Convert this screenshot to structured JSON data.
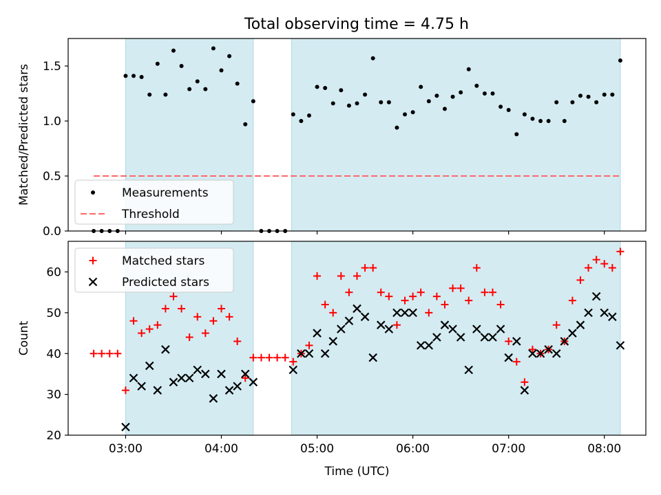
{
  "figure": {
    "title": "Total observing time = 4.75 h"
  },
  "colors": {
    "shade": "#add8e6",
    "measurement": "#000000",
    "threshold": "#ff6666",
    "matched": "#ff0000",
    "predicted": "#000000"
  },
  "chart_data": [
    {
      "type": "scatter",
      "ylabel": "Matched/Predicted stars",
      "xlabel": "",
      "xlim": [
        "02:24",
        "08:26"
      ],
      "ylim": [
        0,
        1.75
      ],
      "yticks": [
        0.0,
        0.5,
        1.0,
        1.5
      ],
      "ytick_labels": [
        "0.0",
        "0.5",
        "1.0",
        "1.5"
      ],
      "grid": false,
      "legend_position": "lower-left",
      "shaded_intervals": [
        [
          "03:00",
          "04:20"
        ],
        [
          "04:44",
          "08:10"
        ]
      ],
      "threshold": {
        "name": "Threshold",
        "value": 0.5,
        "x_range": [
          "02:40",
          "08:10"
        ],
        "style": "dashed"
      },
      "series": [
        {
          "name": "Measurements",
          "marker": "dot",
          "points": [
            [
              "02:40",
              0.0
            ],
            [
              "02:45",
              0.0
            ],
            [
              "02:50",
              0.0
            ],
            [
              "02:55",
              0.0
            ],
            [
              "03:00",
              1.41
            ],
            [
              "03:05",
              1.41
            ],
            [
              "03:10",
              1.4
            ],
            [
              "03:15",
              1.24
            ],
            [
              "03:20",
              1.52
            ],
            [
              "03:25",
              1.24
            ],
            [
              "03:30",
              1.64
            ],
            [
              "03:35",
              1.5
            ],
            [
              "03:40",
              1.29
            ],
            [
              "03:45",
              1.36
            ],
            [
              "03:50",
              1.29
            ],
            [
              "03:55",
              1.66
            ],
            [
              "04:00",
              1.46
            ],
            [
              "04:05",
              1.59
            ],
            [
              "04:10",
              1.34
            ],
            [
              "04:15",
              0.97
            ],
            [
              "04:20",
              1.18
            ],
            [
              "04:25",
              0.0
            ],
            [
              "04:30",
              0.0
            ],
            [
              "04:35",
              0.0
            ],
            [
              "04:40",
              0.0
            ],
            [
              "04:45",
              1.06
            ],
            [
              "04:50",
              1.0
            ],
            [
              "04:55",
              1.05
            ],
            [
              "05:00",
              1.31
            ],
            [
              "05:05",
              1.3
            ],
            [
              "05:10",
              1.16
            ],
            [
              "05:15",
              1.28
            ],
            [
              "05:20",
              1.14
            ],
            [
              "05:25",
              1.16
            ],
            [
              "05:30",
              1.24
            ],
            [
              "05:35",
              1.57
            ],
            [
              "05:40",
              1.17
            ],
            [
              "05:45",
              1.17
            ],
            [
              "05:50",
              0.94
            ],
            [
              "05:55",
              1.06
            ],
            [
              "06:00",
              1.08
            ],
            [
              "06:05",
              1.31
            ],
            [
              "06:10",
              1.18
            ],
            [
              "06:15",
              1.23
            ],
            [
              "06:20",
              1.11
            ],
            [
              "06:25",
              1.22
            ],
            [
              "06:30",
              1.26
            ],
            [
              "06:35",
              1.47
            ],
            [
              "06:40",
              1.32
            ],
            [
              "06:45",
              1.25
            ],
            [
              "06:50",
              1.25
            ],
            [
              "06:55",
              1.13
            ],
            [
              "07:00",
              1.1
            ],
            [
              "07:05",
              0.88
            ],
            [
              "07:10",
              1.06
            ],
            [
              "07:15",
              1.02
            ],
            [
              "07:20",
              1.0
            ],
            [
              "07:25",
              1.0
            ],
            [
              "07:30",
              1.17
            ],
            [
              "07:35",
              1.0
            ],
            [
              "07:40",
              1.17
            ],
            [
              "07:45",
              1.23
            ],
            [
              "07:50",
              1.22
            ],
            [
              "07:55",
              1.17
            ],
            [
              "08:00",
              1.24
            ],
            [
              "08:05",
              1.24
            ],
            [
              "08:10",
              1.55
            ]
          ]
        }
      ]
    },
    {
      "type": "scatter",
      "ylabel": "Count",
      "xlabel": "Time (UTC)",
      "xlim": [
        "02:24",
        "08:26"
      ],
      "ylim": [
        20,
        67.5
      ],
      "yticks": [
        20,
        30,
        40,
        50,
        60
      ],
      "ytick_labels": [
        "20",
        "30",
        "40",
        "50",
        "60"
      ],
      "xticks": [
        "03:00",
        "04:00",
        "05:00",
        "06:00",
        "07:00",
        "08:00"
      ],
      "xtick_labels": [
        "03:00",
        "04:00",
        "05:00",
        "06:00",
        "07:00",
        "08:00"
      ],
      "grid": false,
      "legend_position": "upper-left",
      "shaded_intervals": [
        [
          "03:00",
          "04:20"
        ],
        [
          "04:44",
          "08:10"
        ]
      ],
      "series": [
        {
          "name": "Matched stars",
          "marker": "plus",
          "points": [
            [
              "02:40",
              40
            ],
            [
              "02:45",
              40
            ],
            [
              "02:50",
              40
            ],
            [
              "02:55",
              40
            ],
            [
              "03:00",
              31
            ],
            [
              "03:05",
              48
            ],
            [
              "03:10",
              45
            ],
            [
              "03:15",
              46
            ],
            [
              "03:20",
              47
            ],
            [
              "03:25",
              51
            ],
            [
              "03:30",
              54
            ],
            [
              "03:35",
              51
            ],
            [
              "03:40",
              44
            ],
            [
              "03:45",
              49
            ],
            [
              "03:50",
              45
            ],
            [
              "03:55",
              48
            ],
            [
              "04:00",
              51
            ],
            [
              "04:05",
              49
            ],
            [
              "04:10",
              43
            ],
            [
              "04:15",
              34
            ],
            [
              "04:20",
              39
            ],
            [
              "04:25",
              39
            ],
            [
              "04:30",
              39
            ],
            [
              "04:35",
              39
            ],
            [
              "04:40",
              39
            ],
            [
              "04:45",
              38
            ],
            [
              "04:50",
              40
            ],
            [
              "04:55",
              42
            ],
            [
              "05:00",
              59
            ],
            [
              "05:05",
              52
            ],
            [
              "05:10",
              50
            ],
            [
              "05:15",
              59
            ],
            [
              "05:20",
              55
            ],
            [
              "05:25",
              59
            ],
            [
              "05:30",
              61
            ],
            [
              "05:35",
              61
            ],
            [
              "05:40",
              55
            ],
            [
              "05:45",
              54
            ],
            [
              "05:50",
              47
            ],
            [
              "05:55",
              53
            ],
            [
              "06:00",
              54
            ],
            [
              "06:05",
              55
            ],
            [
              "06:10",
              50
            ],
            [
              "06:15",
              54
            ],
            [
              "06:20",
              52
            ],
            [
              "06:25",
              56
            ],
            [
              "06:30",
              56
            ],
            [
              "06:35",
              53
            ],
            [
              "06:40",
              61
            ],
            [
              "06:45",
              55
            ],
            [
              "06:50",
              55
            ],
            [
              "06:55",
              52
            ],
            [
              "07:00",
              43
            ],
            [
              "07:05",
              38
            ],
            [
              "07:10",
              33
            ],
            [
              "07:15",
              41
            ],
            [
              "07:20",
              40
            ],
            [
              "07:25",
              41
            ],
            [
              "07:30",
              47
            ],
            [
              "07:35",
              43
            ],
            [
              "07:40",
              53
            ],
            [
              "07:45",
              58
            ],
            [
              "07:50",
              61
            ],
            [
              "07:55",
              63
            ],
            [
              "08:00",
              62
            ],
            [
              "08:05",
              61
            ],
            [
              "08:10",
              65
            ]
          ]
        },
        {
          "name": "Predicted stars",
          "marker": "x",
          "points": [
            [
              "03:00",
              22
            ],
            [
              "03:05",
              34
            ],
            [
              "03:10",
              32
            ],
            [
              "03:15",
              37
            ],
            [
              "03:20",
              31
            ],
            [
              "03:25",
              41
            ],
            [
              "03:30",
              33
            ],
            [
              "03:35",
              34
            ],
            [
              "03:40",
              34
            ],
            [
              "03:45",
              36
            ],
            [
              "03:50",
              35
            ],
            [
              "03:55",
              29
            ],
            [
              "04:00",
              35
            ],
            [
              "04:05",
              31
            ],
            [
              "04:10",
              32
            ],
            [
              "04:15",
              35
            ],
            [
              "04:20",
              33
            ],
            [
              "04:45",
              36
            ],
            [
              "04:50",
              40
            ],
            [
              "04:55",
              40
            ],
            [
              "05:00",
              45
            ],
            [
              "05:05",
              40
            ],
            [
              "05:10",
              43
            ],
            [
              "05:15",
              46
            ],
            [
              "05:20",
              48
            ],
            [
              "05:25",
              51
            ],
            [
              "05:30",
              49
            ],
            [
              "05:35",
              39
            ],
            [
              "05:40",
              47
            ],
            [
              "05:45",
              46
            ],
            [
              "05:50",
              50
            ],
            [
              "05:55",
              50
            ],
            [
              "06:00",
              50
            ],
            [
              "06:05",
              42
            ],
            [
              "06:10",
              42
            ],
            [
              "06:15",
              44
            ],
            [
              "06:20",
              47
            ],
            [
              "06:25",
              46
            ],
            [
              "06:30",
              44
            ],
            [
              "06:35",
              36
            ],
            [
              "06:40",
              46
            ],
            [
              "06:45",
              44
            ],
            [
              "06:50",
              44
            ],
            [
              "06:55",
              46
            ],
            [
              "07:00",
              39
            ],
            [
              "07:05",
              43
            ],
            [
              "07:10",
              31
            ],
            [
              "07:15",
              40
            ],
            [
              "07:20",
              40
            ],
            [
              "07:25",
              41
            ],
            [
              "07:30",
              40
            ],
            [
              "07:35",
              43
            ],
            [
              "07:40",
              45
            ],
            [
              "07:45",
              47
            ],
            [
              "07:50",
              50
            ],
            [
              "07:55",
              54
            ],
            [
              "08:00",
              50
            ],
            [
              "08:05",
              49
            ],
            [
              "08:10",
              42
            ]
          ]
        }
      ]
    }
  ]
}
